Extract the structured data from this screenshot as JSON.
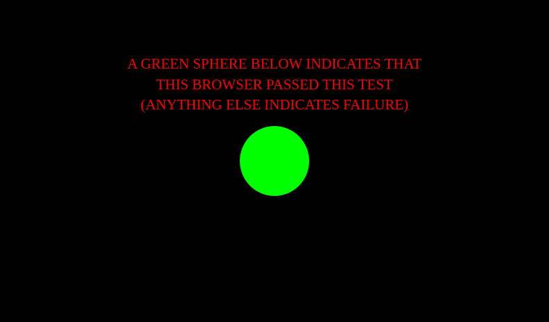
{
  "message": {
    "lines": [
      "A GREEN SPHERE BELOW INDICATES THAT",
      "THIS BROWSER PASSED THIS TEST",
      "(ANYTHING ELSE INDICATES FAILURE)"
    ]
  },
  "colors": {
    "background": "#000000",
    "text": "#ff0000",
    "sphere": "#00ff00"
  },
  "icons": {
    "sphere": "green-sphere-icon"
  }
}
